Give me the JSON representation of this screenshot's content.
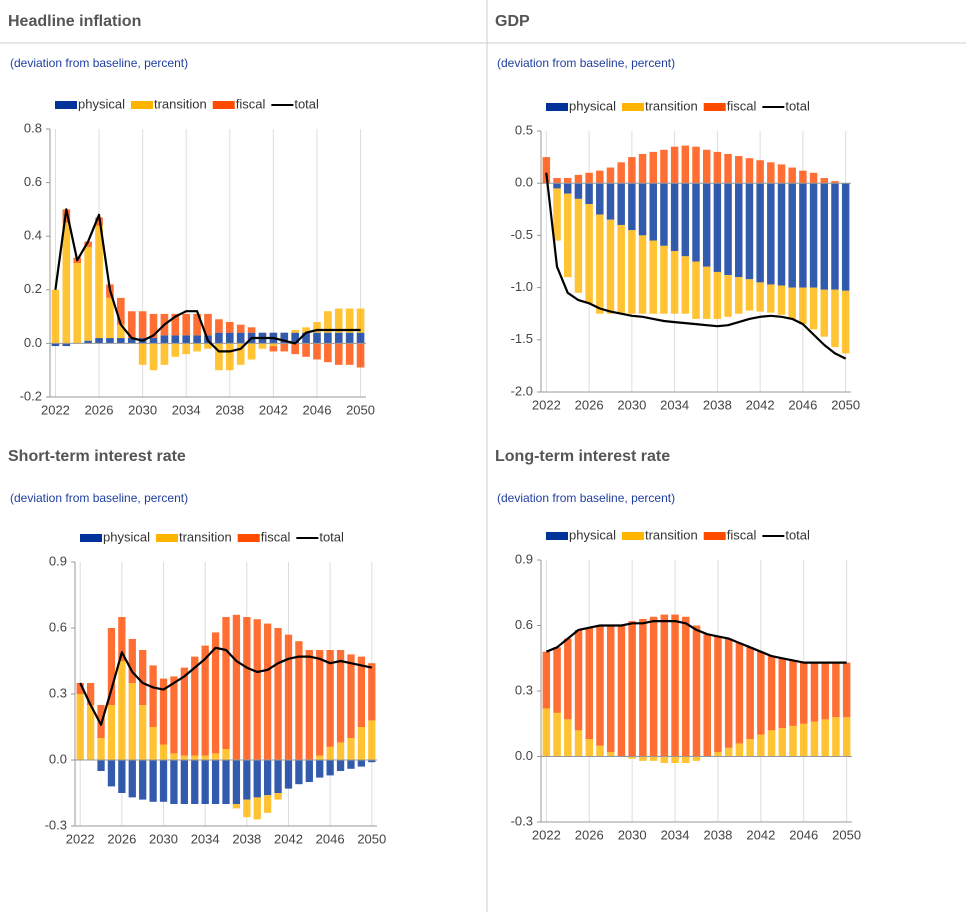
{
  "chart_data": [
    {
      "type": "bar",
      "title": "Headline inflation",
      "subtitle": "(deviation from baseline, percent)",
      "x": [
        2022,
        2023,
        2024,
        2025,
        2026,
        2027,
        2028,
        2029,
        2030,
        2031,
        2032,
        2033,
        2034,
        2035,
        2036,
        2037,
        2038,
        2039,
        2040,
        2041,
        2042,
        2043,
        2044,
        2045,
        2046,
        2047,
        2048,
        2049,
        2050
      ],
      "xlim": [
        2021.5,
        2050.5
      ],
      "xticks": [
        2022,
        2026,
        2030,
        2034,
        2038,
        2042,
        2046,
        2050
      ],
      "ylim": [
        -0.2,
        0.8
      ],
      "yticks": [
        -0.2,
        {
          "value": 0,
          "label": "0.0"
        },
        0.2,
        0.4,
        0.6,
        0.8
      ],
      "grid": true,
      "series": [
        {
          "name": "physical",
          "color": "#003299",
          "values": [
            -0.01,
            -0.01,
            0.0,
            0.01,
            0.02,
            0.02,
            0.02,
            0.02,
            0.02,
            0.02,
            0.03,
            0.03,
            0.03,
            0.03,
            0.03,
            0.04,
            0.04,
            0.04,
            0.04,
            0.04,
            0.04,
            0.04,
            0.04,
            0.04,
            0.04,
            0.04,
            0.04,
            0.04,
            0.04
          ]
        },
        {
          "name": "transition",
          "color": "#ffb400",
          "values": [
            0.2,
            0.45,
            0.3,
            0.35,
            0.42,
            0.15,
            0.05,
            0.0,
            -0.08,
            -0.1,
            -0.08,
            -0.05,
            -0.04,
            -0.03,
            -0.02,
            -0.1,
            -0.1,
            -0.08,
            -0.06,
            -0.02,
            -0.01,
            0.0,
            0.01,
            0.02,
            0.04,
            0.08,
            0.09,
            0.09,
            0.09
          ]
        },
        {
          "name": "fiscal",
          "color": "#ff4b00",
          "values": [
            0.0,
            0.05,
            0.02,
            0.02,
            0.03,
            0.05,
            0.1,
            0.1,
            0.1,
            0.09,
            0.08,
            0.08,
            0.08,
            0.08,
            0.08,
            0.05,
            0.04,
            0.03,
            0.02,
            0.0,
            -0.02,
            -0.03,
            -0.04,
            -0.05,
            -0.06,
            -0.07,
            -0.08,
            -0.08,
            -0.09
          ]
        },
        {
          "name": "total",
          "color": "#000000",
          "type": "line",
          "values": [
            0.2,
            0.5,
            0.31,
            0.38,
            0.48,
            0.2,
            0.07,
            0.02,
            0.01,
            0.03,
            0.07,
            0.1,
            0.12,
            0.12,
            0.01,
            -0.03,
            -0.03,
            -0.02,
            0.02,
            0.02,
            0.02,
            0.01,
            0.0,
            0.04,
            0.05,
            0.05,
            0.05,
            0.05,
            0.05
          ]
        }
      ]
    },
    {
      "type": "bar",
      "title": "GDP",
      "subtitle": "(deviation from baseline, percent)",
      "x": [
        2022,
        2023,
        2024,
        2025,
        2026,
        2027,
        2028,
        2029,
        2030,
        2031,
        2032,
        2033,
        2034,
        2035,
        2036,
        2037,
        2038,
        2039,
        2040,
        2041,
        2042,
        2043,
        2044,
        2045,
        2046,
        2047,
        2048,
        2049,
        2050
      ],
      "xlim": [
        2021.5,
        2050.5
      ],
      "xticks": [
        2022,
        2026,
        2030,
        2034,
        2038,
        2042,
        2046,
        2050
      ],
      "ylim": [
        -2.0,
        0.5
      ],
      "yticks": [
        {
          "value": -2,
          "label": "-2.0"
        },
        -1.5,
        {
          "value": -1,
          "label": "-1.0"
        },
        -0.5,
        {
          "value": 0,
          "label": "0.0"
        },
        0.5
      ],
      "grid": true,
      "series": [
        {
          "name": "physical",
          "color": "#003299",
          "values": [
            0,
            -0.05,
            -0.1,
            -0.15,
            -0.2,
            -0.3,
            -0.35,
            -0.4,
            -0.45,
            -0.5,
            -0.55,
            -0.6,
            -0.65,
            -0.7,
            -0.75,
            -0.8,
            -0.85,
            -0.88,
            -0.9,
            -0.92,
            -0.95,
            -0.97,
            -0.98,
            -1.0,
            -1.0,
            -1.0,
            -1.02,
            -1.02,
            -1.03
          ]
        },
        {
          "name": "transition",
          "color": "#ffb400",
          "values": [
            0,
            -0.5,
            -0.8,
            -0.9,
            -0.95,
            -0.95,
            -0.9,
            -0.85,
            -0.8,
            -0.75,
            -0.7,
            -0.65,
            -0.6,
            -0.55,
            -0.55,
            -0.5,
            -0.45,
            -0.4,
            -0.35,
            -0.3,
            -0.28,
            -0.27,
            -0.28,
            -0.3,
            -0.35,
            -0.4,
            -0.45,
            -0.55,
            -0.6
          ]
        },
        {
          "name": "fiscal",
          "color": "#ff4b00",
          "values": [
            0.25,
            0.05,
            0.05,
            0.08,
            0.1,
            0.12,
            0.15,
            0.2,
            0.25,
            0.28,
            0.3,
            0.32,
            0.35,
            0.36,
            0.35,
            0.32,
            0.3,
            0.28,
            0.26,
            0.24,
            0.22,
            0.2,
            0.18,
            0.15,
            0.12,
            0.1,
            0.05,
            0.02,
            0.0
          ]
        },
        {
          "name": "total",
          "color": "#000000",
          "type": "line",
          "values": [
            0.1,
            -0.8,
            -1.05,
            -1.12,
            -1.15,
            -1.2,
            -1.23,
            -1.25,
            -1.27,
            -1.28,
            -1.3,
            -1.32,
            -1.33,
            -1.34,
            -1.35,
            -1.36,
            -1.37,
            -1.36,
            -1.33,
            -1.3,
            -1.28,
            -1.27,
            -1.28,
            -1.3,
            -1.35,
            -1.45,
            -1.55,
            -1.63,
            -1.68
          ]
        }
      ]
    },
    {
      "type": "bar",
      "title": "Short-term interest rate",
      "subtitle": "(deviation from baseline, percent)",
      "x": [
        2022,
        2023,
        2024,
        2025,
        2026,
        2027,
        2028,
        2029,
        2030,
        2031,
        2032,
        2033,
        2034,
        2035,
        2036,
        2037,
        2038,
        2039,
        2040,
        2041,
        2042,
        2043,
        2044,
        2045,
        2046,
        2047,
        2048,
        2049,
        2050
      ],
      "xlim": [
        2021.5,
        2050.5
      ],
      "xticks": [
        2022,
        2026,
        2030,
        2034,
        2038,
        2042,
        2046,
        2050
      ],
      "ylim": [
        -0.3,
        0.9
      ],
      "yticks": [
        -0.3,
        {
          "value": 0,
          "label": "0.0"
        },
        0.3,
        0.6,
        0.9
      ],
      "grid": true,
      "series": [
        {
          "name": "physical",
          "color": "#003299",
          "values": [
            0,
            0,
            -0.05,
            -0.12,
            -0.15,
            -0.17,
            -0.18,
            -0.19,
            -0.19,
            -0.2,
            -0.2,
            -0.2,
            -0.2,
            -0.2,
            -0.2,
            -0.2,
            -0.18,
            -0.17,
            -0.16,
            -0.15,
            -0.13,
            -0.11,
            -0.1,
            -0.08,
            -0.07,
            -0.05,
            -0.04,
            -0.03,
            -0.01
          ]
        },
        {
          "name": "transition",
          "color": "#ffb400",
          "values": [
            0.3,
            0.25,
            0.1,
            0.25,
            0.45,
            0.35,
            0.25,
            0.15,
            0.07,
            0.03,
            0.02,
            0.02,
            0.02,
            0.03,
            0.05,
            -0.02,
            -0.08,
            -0.1,
            -0.08,
            -0.03,
            0.0,
            0.0,
            0.0,
            0.02,
            0.06,
            0.08,
            0.1,
            0.15,
            0.18
          ]
        },
        {
          "name": "fiscal",
          "color": "#ff4b00",
          "values": [
            0.05,
            0.1,
            0.15,
            0.35,
            0.2,
            0.2,
            0.25,
            0.28,
            0.3,
            0.35,
            0.4,
            0.45,
            0.5,
            0.55,
            0.6,
            0.66,
            0.65,
            0.64,
            0.62,
            0.6,
            0.57,
            0.54,
            0.5,
            0.48,
            0.44,
            0.42,
            0.38,
            0.32,
            0.26
          ]
        },
        {
          "name": "total",
          "color": "#000000",
          "type": "line",
          "values": [
            0.35,
            0.25,
            0.16,
            0.32,
            0.49,
            0.4,
            0.35,
            0.33,
            0.32,
            0.35,
            0.38,
            0.42,
            0.46,
            0.51,
            0.5,
            0.45,
            0.42,
            0.4,
            0.41,
            0.44,
            0.46,
            0.47,
            0.47,
            0.46,
            0.44,
            0.45,
            0.44,
            0.43,
            0.42
          ]
        }
      ]
    },
    {
      "type": "bar",
      "title": "Long-term interest rate",
      "subtitle": "(deviation from baseline, percent)",
      "x": [
        2022,
        2023,
        2024,
        2025,
        2026,
        2027,
        2028,
        2029,
        2030,
        2031,
        2032,
        2033,
        2034,
        2035,
        2036,
        2037,
        2038,
        2039,
        2040,
        2041,
        2042,
        2043,
        2044,
        2045,
        2046,
        2047,
        2048,
        2049,
        2050
      ],
      "xlim": [
        2021.5,
        2050.5
      ],
      "xticks": [
        2022,
        2026,
        2030,
        2034,
        2038,
        2042,
        2046,
        2050
      ],
      "ylim": [
        -0.3,
        0.9
      ],
      "yticks": [
        -0.3,
        {
          "value": 0,
          "label": "0.0"
        },
        0.3,
        0.6,
        0.9
      ],
      "grid": true,
      "series": [
        {
          "name": "physical",
          "color": "#003299",
          "values": [
            0,
            0,
            0,
            0,
            0,
            0,
            0,
            0,
            0,
            0,
            0,
            0,
            0,
            0,
            0,
            0,
            0,
            0,
            0,
            0,
            0,
            0,
            0,
            0,
            0,
            0,
            0,
            0,
            0
          ]
        },
        {
          "name": "transition",
          "color": "#ffb400",
          "values": [
            0.22,
            0.2,
            0.17,
            0.12,
            0.08,
            0.05,
            0.02,
            0.0,
            -0.01,
            -0.02,
            -0.02,
            -0.03,
            -0.03,
            -0.03,
            -0.02,
            0.0,
            0.02,
            0.04,
            0.06,
            0.08,
            0.1,
            0.12,
            0.13,
            0.14,
            0.15,
            0.16,
            0.17,
            0.18,
            0.18
          ]
        },
        {
          "name": "fiscal",
          "color": "#ff4b00",
          "values": [
            0.26,
            0.3,
            0.37,
            0.46,
            0.51,
            0.55,
            0.58,
            0.6,
            0.62,
            0.63,
            0.64,
            0.65,
            0.65,
            0.64,
            0.6,
            0.56,
            0.53,
            0.5,
            0.46,
            0.42,
            0.38,
            0.34,
            0.32,
            0.3,
            0.28,
            0.27,
            0.26,
            0.25,
            0.25
          ]
        },
        {
          "name": "total",
          "color": "#000000",
          "type": "line",
          "values": [
            0.48,
            0.5,
            0.54,
            0.58,
            0.59,
            0.6,
            0.6,
            0.6,
            0.61,
            0.61,
            0.62,
            0.62,
            0.62,
            0.61,
            0.58,
            0.56,
            0.55,
            0.54,
            0.52,
            0.5,
            0.48,
            0.46,
            0.45,
            0.44,
            0.43,
            0.43,
            0.43,
            0.43,
            0.43
          ]
        }
      ]
    }
  ]
}
